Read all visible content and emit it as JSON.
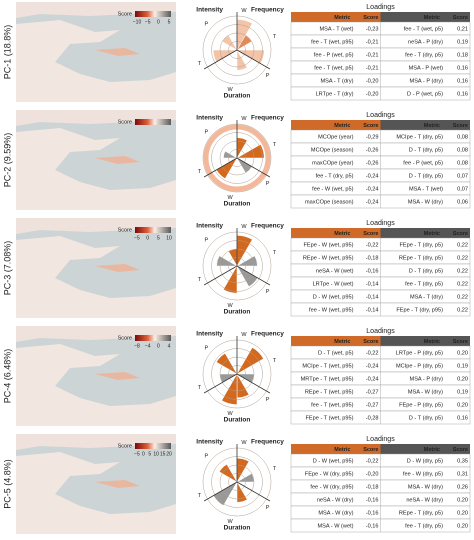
{
  "panels": [
    {
      "label": "PC-1 (18.8%)",
      "colorbar": {
        "title": "Score",
        "ticks": [
          "−10",
          "−5",
          "0",
          "5"
        ]
      },
      "rose": {
        "top_left": "Intensity",
        "top_right": "Frequency",
        "bottom": "Duration",
        "spokes": [
          "W",
          "T",
          "P",
          "W",
          "T",
          "P"
        ]
      },
      "table": {
        "title": "Loadings",
        "headers": [
          "Metric",
          "Score",
          "Metric",
          "Score"
        ],
        "rows": [
          [
            "MSA - T (wet)",
            "-0,23",
            "fee - T (wet, p5)",
            "0,21"
          ],
          [
            "fee - T (wet, p95)",
            "-0,21",
            "neSA - P (dry)",
            "0,19"
          ],
          [
            "fee - P (wet, p5)",
            "-0,21",
            "fee - T (dry, p5)",
            "0,18"
          ],
          [
            "fee - T (wet, p5)",
            "-0,21",
            "MSA - P (wet)",
            "0,16"
          ],
          [
            "MSA - T (dry)",
            "-0,20",
            "MSA - P (dry)",
            "0,16"
          ],
          [
            "LRTpe - T (dry)",
            "-0,20",
            "D - P (wet, p5)",
            "0,16"
          ]
        ]
      }
    },
    {
      "label": "PC-2 (9.59%)",
      "colorbar": {
        "title": "Score",
        "ticks": []
      },
      "rose": {
        "top_left": "Intensity",
        "top_right": "Frequency",
        "bottom": "Duration",
        "spokes": [
          "W",
          "T",
          "P",
          "W",
          "T",
          "P"
        ]
      },
      "table": {
        "title": "Loadings",
        "headers": [
          "Metric",
          "Score",
          "Metric",
          "Score"
        ],
        "rows": [
          [
            "MCOpe (year)",
            "-0,29",
            "MCIpe - T (dry, p5)",
            "0,08"
          ],
          [
            "MCOpe (season)",
            "-0,26",
            "D - T (dry, p5)",
            "0,08"
          ],
          [
            "maxCOpe (year)",
            "-0,26",
            "fee - P (wet, p5)",
            "0,08"
          ],
          [
            "fee - T (dry, p5)",
            "-0,24",
            "D - T (dry, p5)",
            "0,07"
          ],
          [
            "fee - W (wet, p5)",
            "-0,24",
            "MSA - T (wet)",
            "0,07"
          ],
          [
            "maxCOpe (season)",
            "-0,24",
            "MSA - W (dry)",
            "0,06"
          ]
        ]
      }
    },
    {
      "label": "PC-3 (7.08%)",
      "colorbar": {
        "title": "Score",
        "ticks": [
          "−5",
          "0",
          "5",
          "10"
        ]
      },
      "rose": {
        "top_left": "Intensity",
        "top_right": "Frequency",
        "bottom": "Duration",
        "spokes": [
          "W",
          "T",
          "P",
          "W",
          "T",
          "P"
        ]
      },
      "table": {
        "title": "Loadings",
        "headers": [
          "Metric",
          "Score",
          "Metric",
          "Score"
        ],
        "rows": [
          [
            "FEpe - W (wet, p95)",
            "-0,22",
            "FEpe - T (dry, p5)",
            "0,22"
          ],
          [
            "REpe - W (wet, p95)",
            "-0,18",
            "REpe - T (dry, p5)",
            "0,22"
          ],
          [
            "neSA - W (wet)",
            "-0,16",
            "D - T (dry, p5)",
            "0,22"
          ],
          [
            "LRTpe - W (wet)",
            "-0,14",
            "fee - T (dry, p5)",
            "0,22"
          ],
          [
            "D - W (wet, p95)",
            "-0,14",
            "MSA - T (dry)",
            "0,22"
          ],
          [
            "fee - W (wet, p95)",
            "-0,14",
            "FEpe - T (dry, p95)",
            "0,22"
          ]
        ]
      }
    },
    {
      "label": "PC-4 (6.48%)",
      "colorbar": {
        "title": "Score",
        "ticks": [
          "−8",
          "−4",
          "0",
          "4"
        ]
      },
      "rose": {
        "top_left": "Intensity",
        "top_right": "Frequency",
        "bottom": "Duration",
        "spokes": [
          "W",
          "T",
          "P",
          "W",
          "T",
          "P"
        ]
      },
      "table": {
        "title": "Loadings",
        "headers": [
          "Metric",
          "Score",
          "Metric",
          "Score"
        ],
        "rows": [
          [
            "D - T (wet, p5)",
            "-0,22",
            "LRTpe - P (dry, p5)",
            "0,20"
          ],
          [
            "MCIpe - T (wet, p95)",
            "-0,24",
            "MCIpe - P (dry, p5)",
            "0,19"
          ],
          [
            "MRTpe - T (wet, p95)",
            "-0,24",
            "MSA - P (dry)",
            "0,20"
          ],
          [
            "REpe - T (wet, p95)",
            "-0,27",
            "MSA - W (dry)",
            "0,19"
          ],
          [
            "fee - T (wet, p95)",
            "-0,27",
            "FEpe - P (dry, p5)",
            "0,20"
          ],
          [
            "FEpe - T (wet, p95)",
            "-0,28",
            "D - T (dry, p5)",
            "0,16"
          ]
        ]
      }
    },
    {
      "label": "PC-5 (4.8%)",
      "colorbar": {
        "title": "Score",
        "ticks": [
          "−5",
          "0",
          "5",
          "10",
          "15",
          "20"
        ]
      },
      "rose": {
        "top_left": "Intensity",
        "top_right": "Frequency",
        "bottom": "Duration",
        "spokes": [
          "W",
          "T",
          "P",
          "W",
          "T",
          "P"
        ]
      },
      "table": {
        "title": "Loadings",
        "headers": [
          "Metric",
          "Score",
          "Metric",
          "Score"
        ],
        "rows": [
          [
            "D - W (wet, p95)",
            "-0,22",
            "D - W (dry, p5)",
            "0,35"
          ],
          [
            "FEpe - W (dry, p95)",
            "-0,20",
            "fee - W (dry, p5)",
            "0,31"
          ],
          [
            "fee - W (dry, p95)",
            "-0,18",
            "MSA - W (dry)",
            "0,26"
          ],
          [
            "neSA - W (dry)",
            "-0,16",
            "neSA - W (dry)",
            "0,20"
          ],
          [
            "MSA - W (dry)",
            "-0,16",
            "REpe - T (dry, p5)",
            "0,20"
          ],
          [
            "MSA - W (wet)",
            "-0,16",
            "fee - T (dry, p5)",
            "0,20"
          ]
        ]
      }
    }
  ]
}
